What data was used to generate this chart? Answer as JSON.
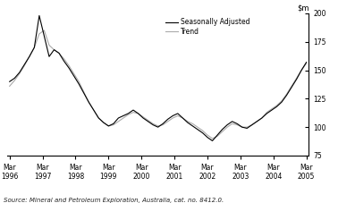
{
  "source_text": "Source: Mineral and Petroleum Exploration, Australia, cat. no. 8412.0.",
  "ylim": [
    75,
    200
  ],
  "yticks": [
    75,
    100,
    125,
    150,
    175,
    200
  ],
  "xtick_labels": [
    "Mar\n1996",
    "Mar\n1997",
    "Mar\n1998",
    "Mar\n1999",
    "Mar\n2000",
    "Mar\n2001",
    "Mar\n2002",
    "Mar\n2003",
    "Mar\n2004",
    "Mar\n2005"
  ],
  "seasonally_adjusted": [
    140,
    143,
    148,
    155,
    162,
    170,
    198,
    180,
    162,
    168,
    165,
    158,
    152,
    145,
    138,
    130,
    122,
    115,
    108,
    104,
    101,
    103,
    108,
    110,
    112,
    115,
    112,
    108,
    105,
    102,
    100,
    103,
    107,
    110,
    112,
    108,
    104,
    101,
    98,
    95,
    91,
    88,
    93,
    98,
    102,
    105,
    103,
    100,
    99,
    102,
    105,
    108,
    112,
    115,
    118,
    122,
    128,
    135,
    142,
    150,
    157
  ],
  "trend": [
    136,
    141,
    147,
    154,
    162,
    170,
    182,
    185,
    172,
    168,
    165,
    160,
    154,
    147,
    140,
    131,
    122,
    115,
    108,
    104,
    101,
    102,
    105,
    108,
    111,
    113,
    112,
    109,
    106,
    103,
    101,
    102,
    105,
    108,
    110,
    108,
    105,
    103,
    100,
    97,
    93,
    90,
    92,
    96,
    100,
    103,
    102,
    100,
    100,
    102,
    105,
    108,
    113,
    116,
    119,
    123,
    129,
    136,
    143,
    150,
    156
  ],
  "sa_color": "#000000",
  "trend_color": "#aaaaaa",
  "legend_labels": [
    "Seasonally Adjusted",
    "Trend"
  ],
  "background_color": "#ffffff",
  "n_points": 61
}
